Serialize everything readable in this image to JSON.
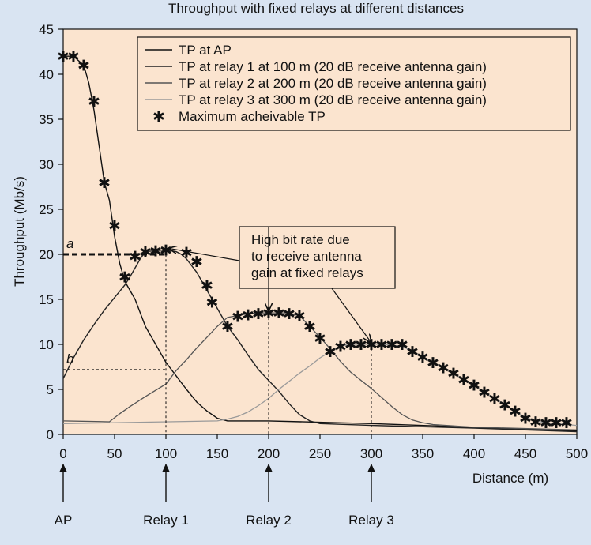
{
  "chart_data": {
    "type": "line",
    "title": "Throughput with fixed relays at different distances",
    "xlabel": "Distance (m)",
    "ylabel": "Throughput (Mb/s)",
    "xlim": [
      0,
      500
    ],
    "ylim": [
      0,
      45
    ],
    "xticks": [
      0,
      50,
      100,
      150,
      200,
      250,
      300,
      350,
      400,
      450,
      500
    ],
    "yticks": [
      0,
      5,
      10,
      15,
      20,
      25,
      30,
      35,
      40,
      45
    ],
    "grid": false,
    "legend_position": "top-right",
    "background_color": "#fbe4cf",
    "series": [
      {
        "name": "TP at AP",
        "color": "#111111",
        "x": [
          -2,
          10,
          20,
          25,
          30,
          35,
          40,
          45,
          50,
          55,
          60,
          65,
          70,
          80,
          90,
          100,
          110,
          120,
          130,
          140,
          150,
          160,
          200,
          300,
          400,
          500
        ],
        "y": [
          42,
          42,
          41,
          39,
          36,
          32,
          28,
          26,
          22,
          19,
          17,
          16,
          15,
          12,
          10,
          8,
          6.5,
          5,
          3.6,
          2.6,
          1.8,
          1.5,
          1.5,
          1.2,
          0.8,
          0.4
        ]
      },
      {
        "name": "TP at relay 1 at 100 m (20 dB receive antenna gain)",
        "color": "#222222",
        "x": [
          -2,
          10,
          20,
          30,
          40,
          50,
          60,
          65,
          70,
          75,
          80,
          90,
          100,
          110,
          115,
          120,
          130,
          140,
          150,
          160,
          170,
          180,
          190,
          200,
          210,
          220,
          230,
          240,
          250,
          300,
          400,
          500
        ],
        "y": [
          6.2,
          8.5,
          10.5,
          12.2,
          13.8,
          15.2,
          16.6,
          17.5,
          18.5,
          19.5,
          20.3,
          20.4,
          20.5,
          20.3,
          20,
          19.5,
          18,
          16,
          14,
          12,
          10.5,
          8.8,
          7.2,
          6,
          4.8,
          3.4,
          2.2,
          1.5,
          1.2,
          1.0,
          0.7,
          0.3
        ]
      },
      {
        "name": "TP at relay 2 at 200 m (20 dB receive antenna gain)",
        "color": "#555555",
        "x": [
          -2,
          45,
          55,
          65,
          80,
          100,
          110,
          120,
          130,
          140,
          150,
          160,
          170,
          180,
          190,
          200,
          210,
          220,
          225,
          230,
          240,
          250,
          260,
          270,
          280,
          290,
          300,
          310,
          320,
          330,
          340,
          350,
          360,
          400,
          500
        ],
        "y": [
          1.5,
          1.4,
          2.3,
          3.1,
          4.2,
          5.6,
          7.1,
          8.3,
          9.6,
          10.8,
          12,
          13,
          13.2,
          13.4,
          13.5,
          13.5,
          13.5,
          13.5,
          13.3,
          13.2,
          12,
          10.8,
          9.5,
          8.1,
          6.9,
          6,
          5.1,
          4.1,
          3.1,
          2.2,
          1.6,
          1.3,
          1.1,
          0.8,
          0.5
        ]
      },
      {
        "name": "TP at relay 3 at 300 m (20 dB receive antenna gain)",
        "color": "#9a9a9a",
        "x": [
          -2,
          150,
          160,
          170,
          180,
          190,
          200,
          210,
          220,
          230,
          240,
          250,
          260,
          270,
          280,
          290,
          300,
          310,
          320,
          330,
          340,
          350,
          360,
          370,
          380,
          390,
          400,
          410,
          420,
          430,
          440,
          450,
          460,
          470,
          480,
          490,
          500
        ],
        "y": [
          1.2,
          1.5,
          1.7,
          2,
          2.5,
          3.2,
          4,
          5,
          5.9,
          6.8,
          7.6,
          8.5,
          9.2,
          9.8,
          10,
          10,
          10,
          10,
          9.9,
          9.8,
          9.2,
          8.6,
          8,
          7.4,
          6.8,
          6.1,
          5.5,
          4.7,
          4,
          3.3,
          2.6,
          1.9,
          1.5,
          1.3,
          1.2,
          1.1,
          1.0
        ]
      }
    ],
    "max_tp_marker_name": "Maximum acheivable TP",
    "max_tp_points": {
      "x": [
        -2,
        10,
        20,
        30,
        40,
        50,
        60,
        70,
        80,
        90,
        100,
        120,
        130,
        140,
        145,
        160,
        170,
        180,
        190,
        200,
        210,
        220,
        230,
        240,
        250,
        260,
        270,
        280,
        290,
        300,
        310,
        320,
        330,
        340,
        350,
        360,
        370,
        380,
        390,
        400,
        410,
        420,
        430,
        440,
        450,
        460,
        470,
        480,
        490
      ],
      "y": [
        42,
        42,
        41,
        37,
        28,
        23.2,
        17.5,
        19.8,
        20.3,
        20.4,
        20.5,
        20.2,
        19.2,
        16.6,
        14.7,
        12,
        13.1,
        13.3,
        13.4,
        13.5,
        13.5,
        13.4,
        13.2,
        12,
        10.7,
        9.2,
        9.8,
        10,
        10,
        10,
        10,
        10,
        10,
        9.2,
        8.6,
        8,
        7.4,
        6.8,
        6.1,
        5.5,
        4.7,
        4,
        3.3,
        2.6,
        1.8,
        1.4,
        1.3,
        1.3,
        1.3
      ]
    },
    "annotations": {
      "callout_text": [
        "High bit rate due",
        "to receive antenna",
        "gain at fixed relays"
      ],
      "callout_targets": [
        {
          "x": 100,
          "y": 20.5
        },
        {
          "x": 200,
          "y": 13.5
        },
        {
          "x": 300,
          "y": 10
        }
      ],
      "label_a": {
        "text": "a",
        "y": 20
      },
      "label_b": {
        "text": "b",
        "y": 7.2
      },
      "guide_a_x": 100,
      "guide_b_x": 100
    },
    "node_labels": [
      {
        "x": 0,
        "label": "AP"
      },
      {
        "x": 100,
        "label": "Relay 1"
      },
      {
        "x": 200,
        "label": "Relay 2"
      },
      {
        "x": 300,
        "label": "Relay 3"
      }
    ]
  }
}
